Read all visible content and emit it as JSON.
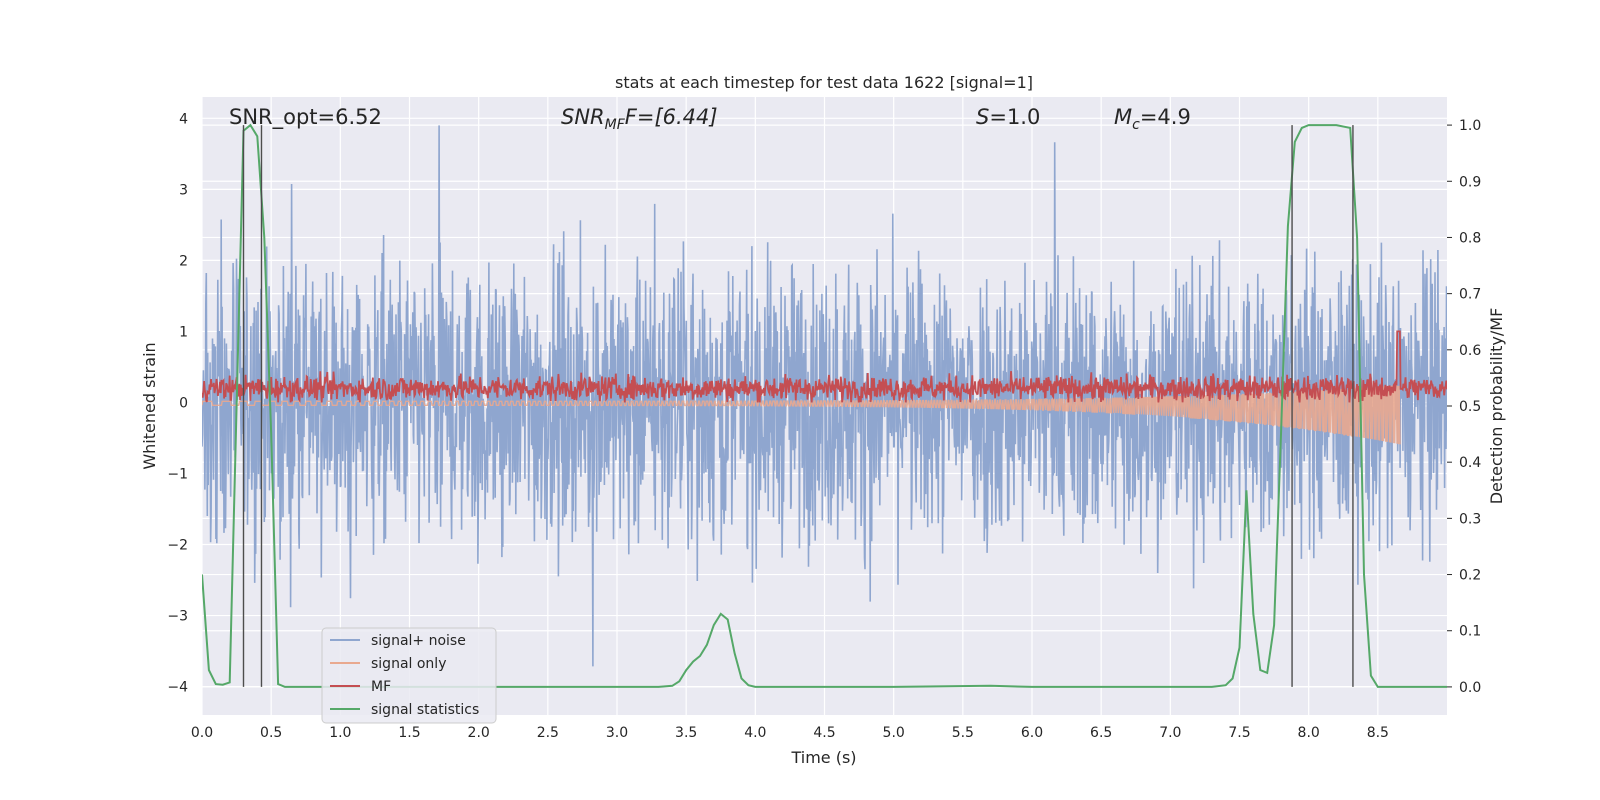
{
  "chart_data": {
    "type": "line",
    "title": "stats at each timestep for test data 1622 [signal=1]",
    "xlabel": "Time (s)",
    "ylabel_left": "Whitened strain",
    "ylabel_right": "Detection probability/MF",
    "xlim": [
      0,
      9
    ],
    "ylim_left": [
      -4.4,
      4.3
    ],
    "ylim_right": [
      -0.05,
      1.05
    ],
    "x_ticks": [
      "0.0",
      "0.5",
      "1.0",
      "1.5",
      "2.0",
      "2.5",
      "3.0",
      "3.5",
      "4.0",
      "4.5",
      "5.0",
      "5.5",
      "6.0",
      "6.5",
      "7.0",
      "7.5",
      "8.0",
      "8.5"
    ],
    "y_ticks_left": [
      "−4",
      "−3",
      "−2",
      "−1",
      "0",
      "1",
      "2",
      "3",
      "4"
    ],
    "y_ticks_right": [
      "0.0",
      "0.1",
      "0.2",
      "0.3",
      "0.4",
      "0.5",
      "0.6",
      "0.7",
      "0.8",
      "0.9",
      "1.0"
    ],
    "grid": true,
    "legend_position": "lower-left",
    "annotations": {
      "snr_opt": "SNR_opt=6.52",
      "snr_mf_main": "SNR",
      "snr_mf_sub": "MF",
      "snr_mf_value": "F=[6.44]",
      "s_label": "S",
      "s_value": "=1.0",
      "mc_main": "M",
      "mc_sub": "c",
      "mc_value": "=4.9"
    },
    "vertical_markers": [
      0.3,
      0.43,
      7.88,
      8.32
    ],
    "series": [
      {
        "name": "signal+ noise",
        "color": "#8fa6cf",
        "axis": "left",
        "description_envelope": {
          "x_range": [
            0,
            9
          ],
          "typical_amplitude": 1.6,
          "max": 3.9,
          "min": -3.8
        }
      },
      {
        "name": "signal only",
        "color": "#e9a98f",
        "axis": "left",
        "description_envelope": {
          "x_range": [
            0,
            8.66
          ],
          "end_min": -0.65,
          "end_max": 0.25
        }
      },
      {
        "name": "MF",
        "color": "#c44e52",
        "axis": "left",
        "baseline": 0.2,
        "spike": {
          "x": 8.65,
          "y": 1.0
        }
      },
      {
        "name": "signal statistics",
        "color": "#55a868",
        "axis": "right",
        "x": [
          0.0,
          0.05,
          0.1,
          0.15,
          0.2,
          0.25,
          0.3,
          0.35,
          0.4,
          0.45,
          0.5,
          0.55,
          0.6,
          0.7,
          0.8,
          1.0,
          2.0,
          3.0,
          3.3,
          3.4,
          3.45,
          3.5,
          3.55,
          3.6,
          3.65,
          3.7,
          3.75,
          3.8,
          3.85,
          3.9,
          3.95,
          4.0,
          4.05,
          4.1,
          4.2,
          5.0,
          5.7,
          6.0,
          7.0,
          7.3,
          7.4,
          7.45,
          7.5,
          7.55,
          7.6,
          7.65,
          7.7,
          7.75,
          7.8,
          7.85,
          7.9,
          7.95,
          8.0,
          8.1,
          8.2,
          8.3,
          8.35,
          8.4,
          8.45,
          8.5,
          8.6,
          8.7,
          9.0
        ],
        "y": [
          0.2,
          0.03,
          0.005,
          0.004,
          0.008,
          0.5,
          0.99,
          1.0,
          0.98,
          0.8,
          0.45,
          0.005,
          0.0,
          0.0,
          0.0,
          0.0,
          0.0,
          0.0,
          0.0,
          0.002,
          0.01,
          0.03,
          0.045,
          0.055,
          0.075,
          0.11,
          0.13,
          0.12,
          0.06,
          0.015,
          0.003,
          0.0,
          0.0,
          0.0,
          0.0,
          0.0,
          0.002,
          0.0,
          0.0,
          0.0,
          0.003,
          0.015,
          0.07,
          0.35,
          0.13,
          0.03,
          0.025,
          0.11,
          0.45,
          0.82,
          0.97,
          0.995,
          1.0,
          1.0,
          1.0,
          0.995,
          0.8,
          0.2,
          0.02,
          0.0,
          0.0,
          0.0,
          0.0
        ]
      }
    ]
  }
}
